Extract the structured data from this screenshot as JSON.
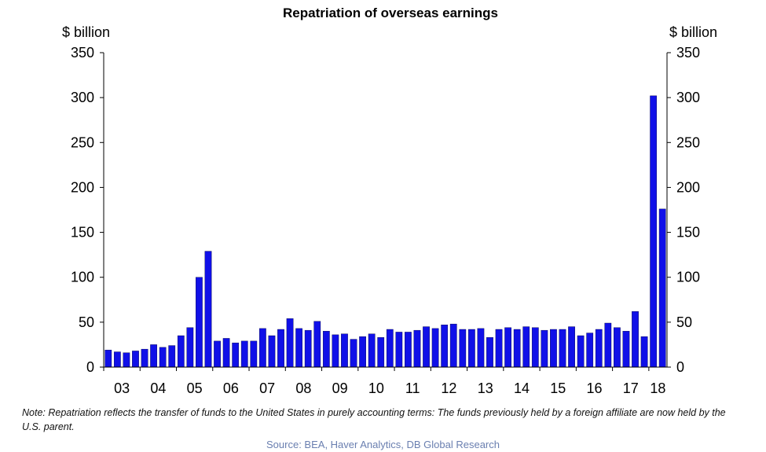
{
  "chart_data": {
    "type": "bar",
    "title": "Repatriation of overseas earnings",
    "ylabel_left": "$ billion",
    "ylabel_right": "$ billion",
    "ylim": [
      0,
      350
    ],
    "yticks": [
      0,
      50,
      100,
      150,
      200,
      250,
      300,
      350
    ],
    "bar_color": "#1010e8",
    "x_tick_labels": [
      "03",
      "04",
      "05",
      "06",
      "07",
      "08",
      "09",
      "10",
      "11",
      "12",
      "13",
      "14",
      "15",
      "16",
      "17",
      "18"
    ],
    "categories": [
      "2003Q1",
      "2003Q2",
      "2003Q3",
      "2003Q4",
      "2004Q1",
      "2004Q2",
      "2004Q3",
      "2004Q4",
      "2005Q1",
      "2005Q2",
      "2005Q3",
      "2005Q4",
      "2006Q1",
      "2006Q2",
      "2006Q3",
      "2006Q4",
      "2007Q1",
      "2007Q2",
      "2007Q3",
      "2007Q4",
      "2008Q1",
      "2008Q2",
      "2008Q3",
      "2008Q4",
      "2009Q1",
      "2009Q2",
      "2009Q3",
      "2009Q4",
      "2010Q1",
      "2010Q2",
      "2010Q3",
      "2010Q4",
      "2011Q1",
      "2011Q2",
      "2011Q3",
      "2011Q4",
      "2012Q1",
      "2012Q2",
      "2012Q3",
      "2012Q4",
      "2013Q1",
      "2013Q2",
      "2013Q3",
      "2013Q4",
      "2014Q1",
      "2014Q2",
      "2014Q3",
      "2014Q4",
      "2015Q1",
      "2015Q2",
      "2015Q3",
      "2015Q4",
      "2016Q1",
      "2016Q2",
      "2016Q3",
      "2016Q4",
      "2017Q1",
      "2017Q2",
      "2017Q3",
      "2017Q4",
      "2018Q1",
      "2018Q2"
    ],
    "values": [
      19,
      17,
      16,
      18,
      20,
      25,
      22,
      24,
      35,
      44,
      100,
      129,
      29,
      32,
      27,
      29,
      29,
      43,
      35,
      42,
      54,
      43,
      41,
      51,
      40,
      36,
      37,
      31,
      34,
      37,
      33,
      42,
      39,
      39,
      41,
      45,
      43,
      47,
      48,
      42,
      42,
      43,
      33,
      42,
      44,
      42,
      45,
      44,
      41,
      42,
      42,
      45,
      35,
      38,
      42,
      49,
      44,
      40,
      62,
      34,
      302,
      176
    ],
    "grid": false,
    "legend": "none"
  },
  "note": "Note:  Repatriation reflects the transfer of funds to the United States in purely accounting terms: The funds previously held by a foreign affiliate are now held by the U.S. parent.",
  "source": "Source: BEA,  Haver Analytics, DB Global Research"
}
